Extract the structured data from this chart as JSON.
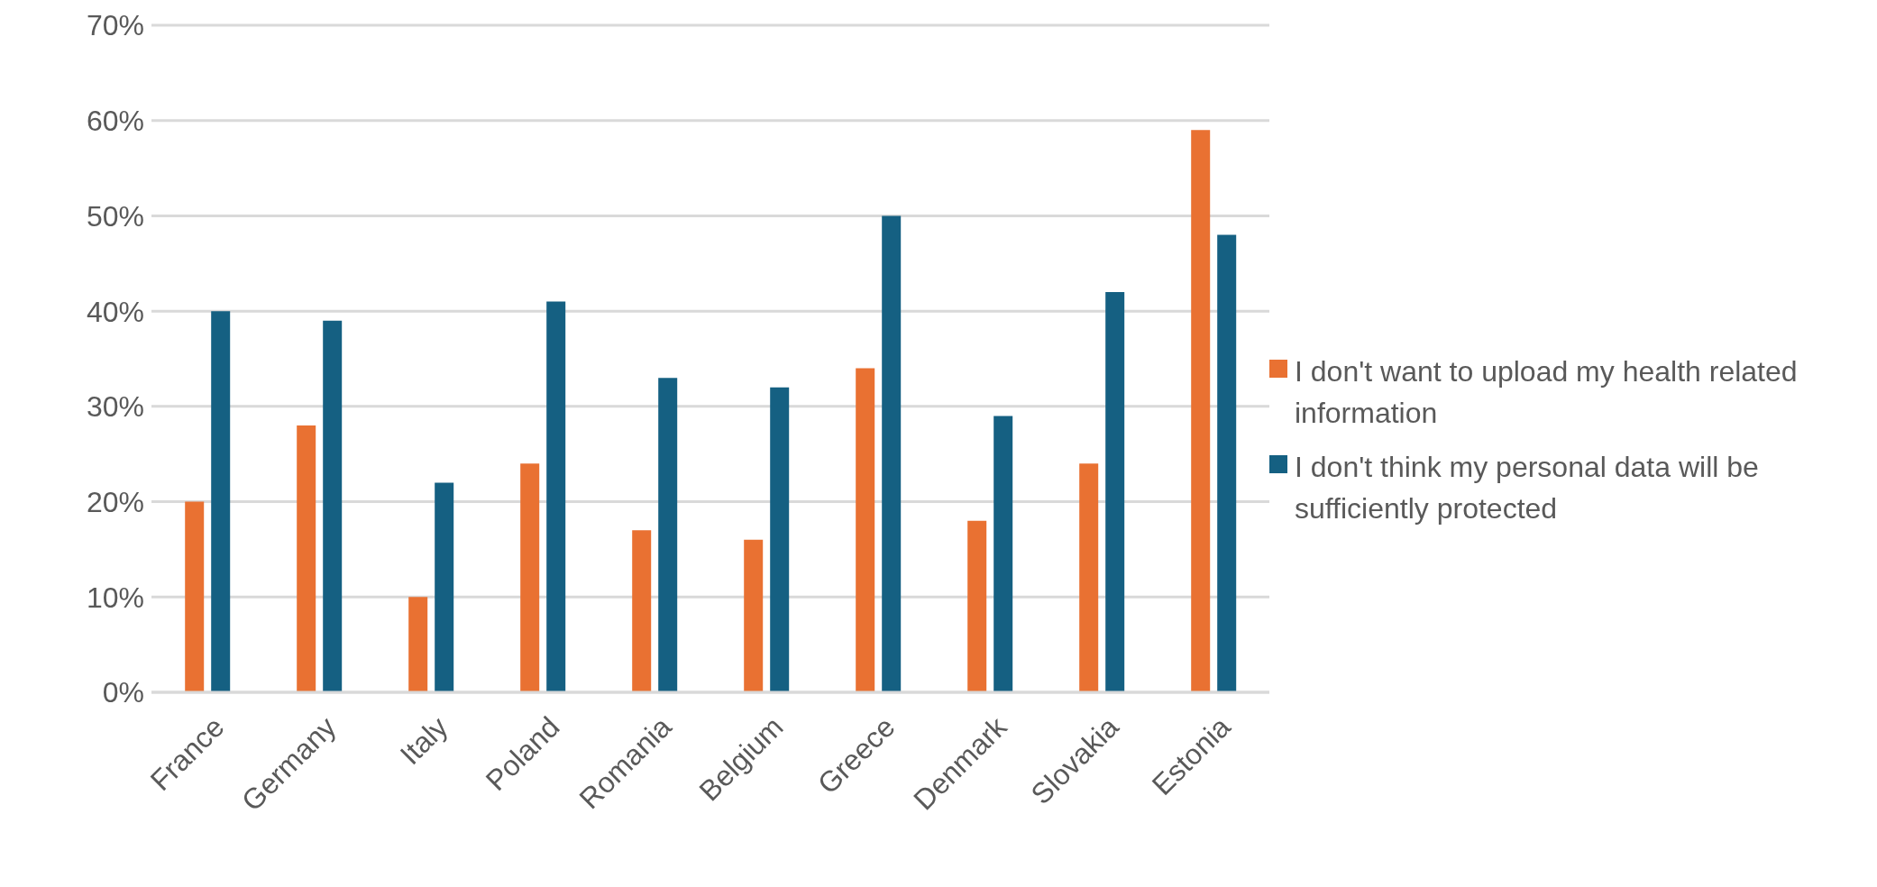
{
  "chart_data": {
    "type": "bar",
    "categories": [
      "France",
      "Germany",
      "Italy",
      "Poland",
      "Romania",
      "Belgium",
      "Greece",
      "Denmark",
      "Slovakia",
      "Estonia"
    ],
    "series": [
      {
        "name": "I don't want to upload my health related information",
        "color": "#e97132",
        "values": [
          20,
          28,
          10,
          24,
          17,
          16,
          34,
          18,
          24,
          59
        ]
      },
      {
        "name": "I don't think my personal data will be sufficiently protected",
        "color": "#156082",
        "values": [
          40,
          39,
          22,
          41,
          33,
          32,
          50,
          29,
          42,
          48
        ]
      }
    ],
    "ylim": [
      0,
      70
    ],
    "yticks": [
      {
        "value": 0,
        "label": "0%"
      },
      {
        "value": 10,
        "label": "10%"
      },
      {
        "value": 20,
        "label": "20%"
      },
      {
        "value": 30,
        "label": "30%"
      },
      {
        "value": 40,
        "label": "40%"
      },
      {
        "value": 50,
        "label": "50%"
      },
      {
        "value": 60,
        "label": "60%"
      },
      {
        "value": 70,
        "label": "70%"
      }
    ],
    "grid": "y",
    "legend": "right"
  }
}
